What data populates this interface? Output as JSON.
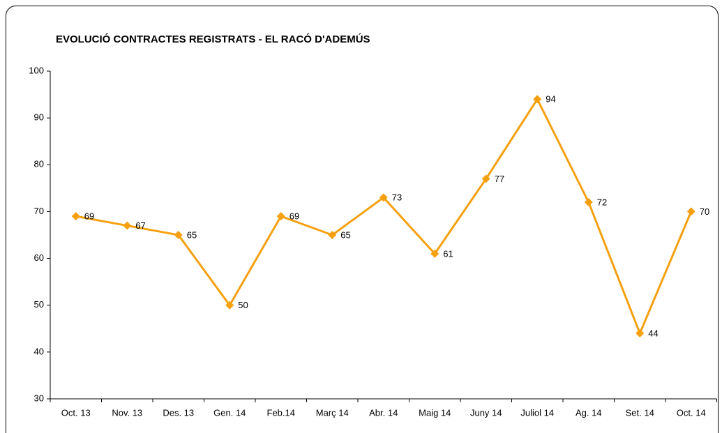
{
  "chart_data": {
    "type": "line",
    "title": "EVOLUCIÓ CONTRACTES REGISTRATS - EL RACÓ D'ADEMÚS",
    "categories": [
      "Oct. 13",
      "Nov. 13",
      "Des. 13",
      "Gen. 14",
      "Feb.14",
      "Març 14",
      "Abr. 14",
      "Maig 14",
      "Juny 14",
      "Juliol 14",
      "Ag. 14",
      "Set. 14",
      "Oct. 14"
    ],
    "values": [
      69,
      67,
      65,
      50,
      69,
      65,
      73,
      61,
      77,
      94,
      72,
      44,
      70
    ],
    "color": "#f5a00f",
    "ylim": [
      30,
      100
    ],
    "yticks": [
      30,
      40,
      50,
      60,
      70,
      80,
      90,
      100
    ],
    "grid": false
  }
}
